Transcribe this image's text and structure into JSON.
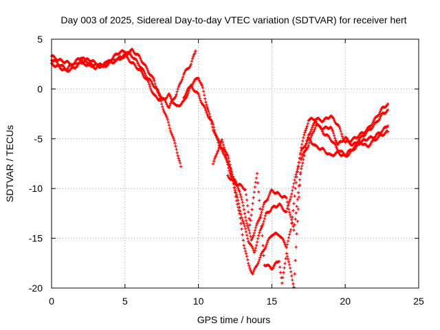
{
  "chart_data": {
    "type": "scatter",
    "title": "Day 003 of 2025, Sidereal Day-to-day VTEC variation (SDTVAR) for receiver hert",
    "xlabel": "GPS time / hours",
    "ylabel": "SDTVAR / TECUs",
    "xlim": [
      0,
      25
    ],
    "ylim": [
      -20,
      5
    ],
    "x_ticks": [
      "0",
      "5",
      "10",
      "15",
      "20",
      "25"
    ],
    "y_ticks": [
      "5",
      "0",
      "-5",
      "-10",
      "-15",
      "-20"
    ],
    "grid": true,
    "marker": "+",
    "color": "#ff0000",
    "series": [
      {
        "x": [
          0.0,
          0.5,
          1.0,
          1.5,
          2.0,
          2.5,
          3.0,
          3.5,
          4.0,
          4.5,
          5.0,
          5.5,
          6.0,
          6.5,
          7.0,
          7.5,
          8.0,
          8.5,
          8.8
        ],
        "y": [
          3.3,
          2.9,
          2.7,
          2.4,
          2.8,
          2.3,
          2.4,
          2.2,
          2.6,
          2.9,
          3.4,
          3.9,
          3.2,
          2.0,
          0.8,
          -1.5,
          -3.6,
          -6.0,
          -7.8
        ]
      },
      {
        "x": [
          0.0,
          0.5,
          1.0,
          1.5,
          2.0,
          2.5,
          3.0,
          3.5,
          4.0,
          4.5,
          5.0,
          5.5,
          6.0,
          6.5,
          7.0,
          7.5,
          8.0,
          8.5,
          9.0,
          9.5,
          9.8
        ],
        "y": [
          2.5,
          2.2,
          1.8,
          2.1,
          2.6,
          3.0,
          2.6,
          2.3,
          2.9,
          3.6,
          3.8,
          3.3,
          2.4,
          1.2,
          0.3,
          -0.8,
          -1.8,
          -0.5,
          1.5,
          2.5,
          3.8
        ]
      },
      {
        "x": [
          0.0,
          1.0,
          2.0,
          3.0,
          4.0,
          5.0,
          5.5,
          6.0,
          6.5,
          7.0,
          7.5,
          8.0,
          8.5,
          9.0,
          9.5,
          10.0,
          10.5,
          11.0,
          11.3,
          11.6,
          12.0,
          12.4,
          12.8,
          13.1,
          13.4,
          13.7,
          14.0,
          14.5,
          15.0,
          15.5,
          16.0,
          16.3,
          16.6,
          17.0,
          17.5,
          18.0,
          18.5,
          19.0,
          19.5,
          20.0,
          20.5,
          21.0,
          21.5,
          22.0,
          22.5,
          22.9
        ],
        "y": [
          3.0,
          2.0,
          3.2,
          2.1,
          2.8,
          3.3,
          2.6,
          1.9,
          0.9,
          -0.7,
          -1.2,
          -0.6,
          -1.8,
          -1.3,
          0.3,
          -0.6,
          -2.2,
          -3.6,
          -5.0,
          -6.0,
          -7.6,
          -9.6,
          -12.6,
          -15.6,
          -17.6,
          -18.6,
          -17.6,
          -16.0,
          -14.6,
          -14.6,
          -15.8,
          -14.2,
          -10.0,
          -5.8,
          -3.1,
          -3.0,
          -3.2,
          -2.7,
          -3.6,
          -5.4,
          -5.1,
          -4.6,
          -4.1,
          -3.1,
          -2.0,
          -1.5
        ]
      },
      {
        "x": [
          9.0,
          9.5,
          10.0,
          10.3,
          10.6,
          11.0,
          11.4,
          11.8,
          12.2,
          12.6,
          13.0,
          13.4,
          13.8,
          14.2,
          14.6,
          15.0,
          15.5,
          16.0,
          16.5,
          17.0,
          17.5,
          18.0,
          18.5,
          19.0,
          19.5,
          20.0,
          20.5,
          21.0,
          21.5,
          22.0,
          22.5,
          22.9
        ],
        "y": [
          -0.8,
          0.4,
          1.2,
          0.0,
          -1.8,
          -4.0,
          -5.6,
          -6.4,
          -8.2,
          -10.7,
          -13.1,
          -15.2,
          -16.4,
          -14.3,
          -12.6,
          -12.0,
          -11.6,
          -12.4,
          -9.6,
          -6.3,
          -5.0,
          -5.8,
          -6.1,
          -6.7,
          -6.4,
          -6.8,
          -6.2,
          -5.3,
          -5.8,
          -5.1,
          -4.6,
          -4.3
        ]
      },
      {
        "x": [
          11.0,
          11.3,
          11.6,
          12.0,
          12.4,
          12.8,
          13.2,
          13.6,
          14.0,
          14.5,
          15.0,
          15.5,
          16.0,
          16.5,
          17.0,
          17.5,
          18.0,
          18.5,
          19.0,
          19.5,
          20.0,
          20.5,
          21.0,
          21.5,
          22.0,
          22.5,
          22.9
        ],
        "y": [
          -7.6,
          -6.2,
          -5.2,
          -6.8,
          -9.0,
          -10.2,
          -12.8,
          -15.2,
          -13.6,
          -11.5,
          -10.2,
          -10.6,
          -11.0,
          -14.2,
          -8.0,
          -4.6,
          -3.2,
          -4.4,
          -5.0,
          -6.1,
          -6.6,
          -6.0,
          -5.4,
          -5.0,
          -4.8,
          -4.2,
          -3.7
        ]
      },
      {
        "x": [
          12.0,
          12.5,
          13.0,
          13.2,
          13.5,
          14.0,
          14.5,
          15.0,
          15.5,
          15.7,
          16.0,
          16.5,
          17.0,
          17.5,
          18.0,
          18.5,
          19.0,
          19.5,
          20.0,
          20.5,
          21.0,
          21.5,
          22.0,
          22.5,
          22.9
        ],
        "y": [
          -8.7,
          -9.5,
          -9.8,
          -10.1,
          -13.6,
          -8.4,
          -17.6,
          -18.0,
          -17.2,
          -19.6,
          -16.4,
          -19.8,
          -7.0,
          -5.6,
          -3.6,
          -4.0,
          -3.8,
          -5.6,
          -4.9,
          -5.7,
          -5.0,
          -4.3,
          -3.6,
          -2.6,
          -2.1
        ]
      }
    ]
  }
}
